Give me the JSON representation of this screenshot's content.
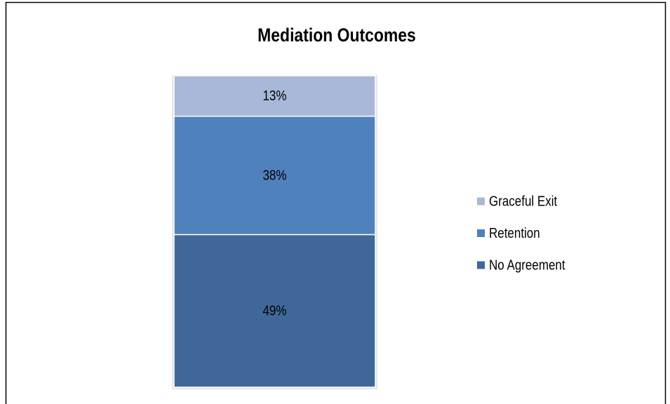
{
  "chart_data": {
    "type": "stacked_bar",
    "title": "Mediation Outcomes",
    "categories": [
      null
    ],
    "series": [
      {
        "name": "No Agreement",
        "color": "#3f6899",
        "values": [
          49
        ],
        "value_labels": [
          "49%"
        ]
      },
      {
        "name": "Retention",
        "color": "#4f81bd",
        "values": [
          38
        ],
        "value_labels": [
          "38%"
        ]
      },
      {
        "name": "Graceful Exit",
        "color": "#a9b8d8",
        "values": [
          13
        ],
        "value_labels": [
          "13%"
        ]
      }
    ],
    "legend": "right"
  }
}
